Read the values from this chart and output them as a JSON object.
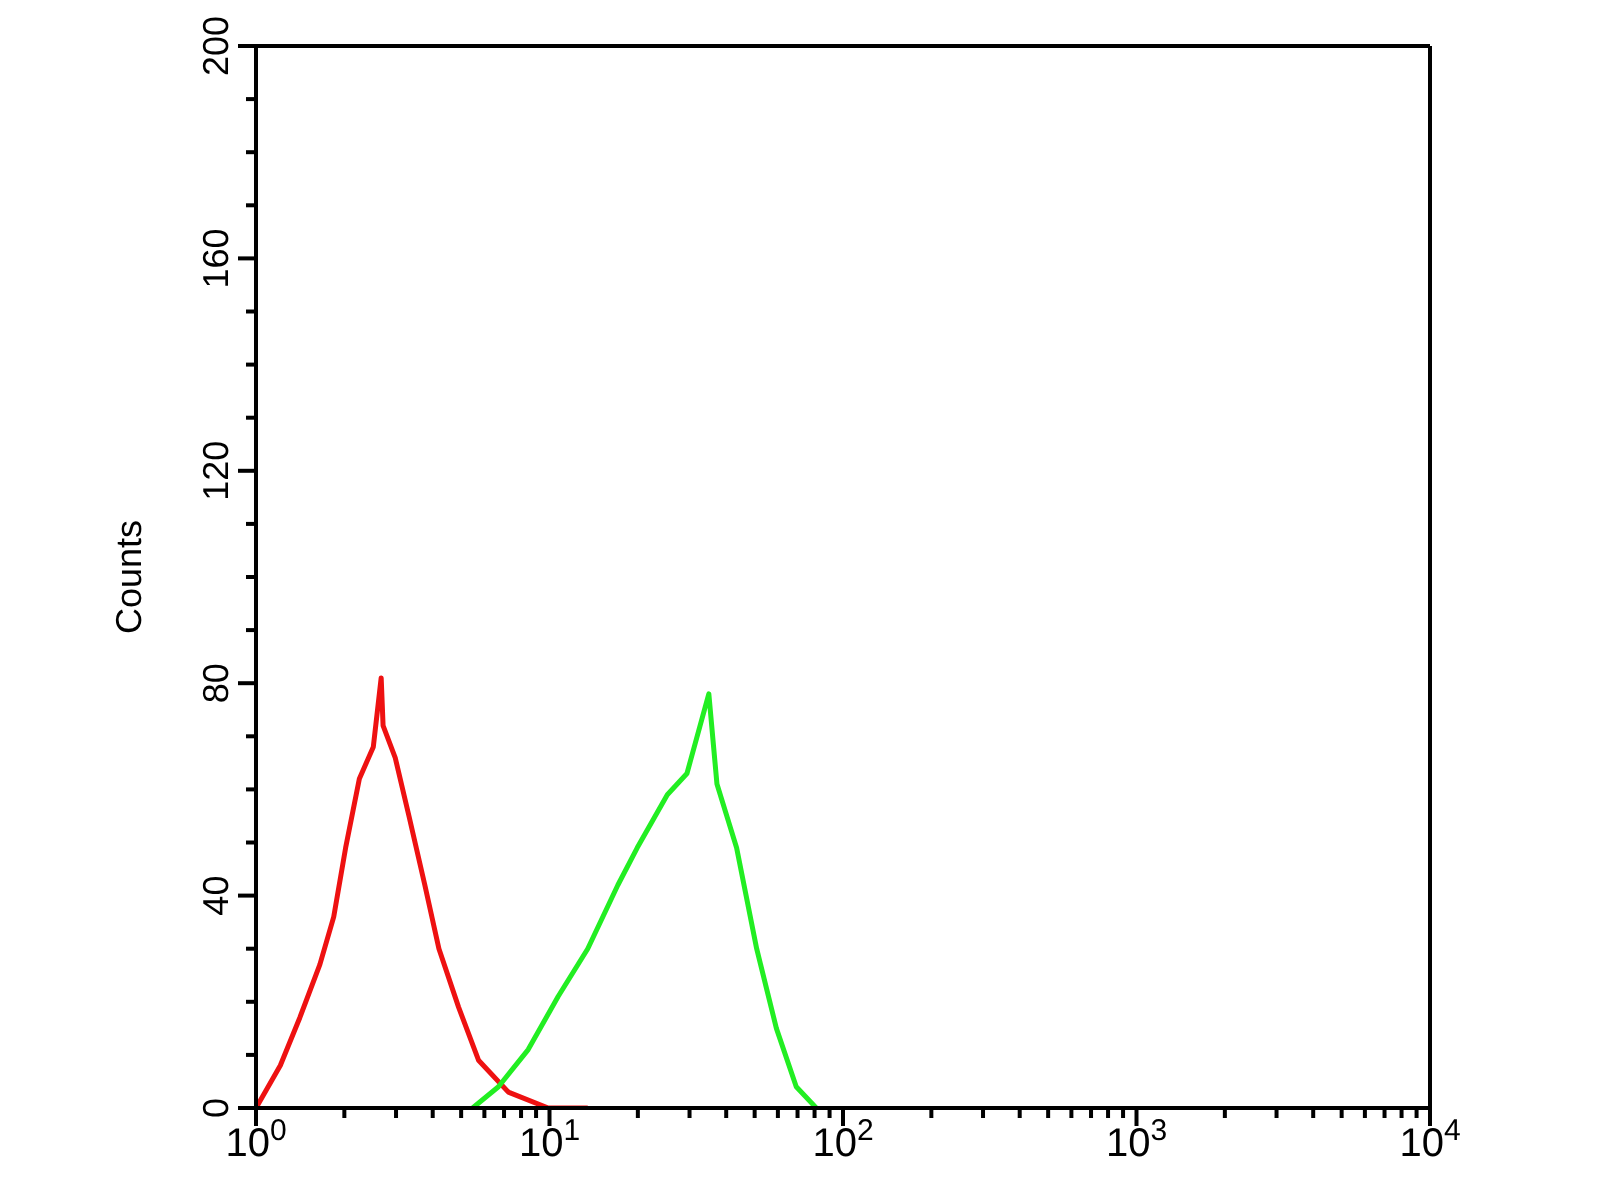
{
  "chart_data": {
    "type": "line",
    "ylabel": "Counts",
    "log": "x",
    "marker": "none",
    "xlim": [
      1,
      10000
    ],
    "ylim": [
      0,
      200
    ],
    "xticks": [
      {
        "value": 1,
        "label": "10$^{0}$"
      },
      {
        "value": 2,
        "label": null
      },
      {
        "value": 3,
        "label": null
      },
      {
        "value": 4,
        "label": null
      },
      {
        "value": 5,
        "label": null
      },
      {
        "value": 6,
        "label": null
      },
      {
        "value": 7,
        "label": null
      },
      {
        "value": 8,
        "label": null
      },
      {
        "value": 9,
        "label": null
      },
      {
        "value": 10,
        "label": "10$^{1}$"
      },
      {
        "value": 20,
        "label": null
      },
      {
        "value": 30,
        "label": null
      },
      {
        "value": 40,
        "label": null
      },
      {
        "value": 50,
        "label": null
      },
      {
        "value": 60,
        "label": null
      },
      {
        "value": 70,
        "label": null
      },
      {
        "value": 80,
        "label": null
      },
      {
        "value": 90,
        "label": null
      },
      {
        "value": 100,
        "label": "10$^{2}$"
      },
      {
        "value": 200,
        "label": null
      },
      {
        "value": 300,
        "label": null
      },
      {
        "value": 400,
        "label": null
      },
      {
        "value": 500,
        "label": null
      },
      {
        "value": 600,
        "label": null
      },
      {
        "value": 700,
        "label": null
      },
      {
        "value": 800,
        "label": null
      },
      {
        "value": 900,
        "label": null
      },
      {
        "value": 1000,
        "label": "10$^{3}$"
      },
      {
        "value": 2000,
        "label": null
      },
      {
        "value": 3000,
        "label": null
      },
      {
        "value": 4000,
        "label": null
      },
      {
        "value": 5000,
        "label": null
      },
      {
        "value": 6000,
        "label": null
      },
      {
        "value": 7000,
        "label": null
      },
      {
        "value": 8000,
        "label": null
      },
      {
        "value": 9000,
        "label": null
      },
      {
        "value": 10000,
        "label": "10$^{4}$"
      }
    ],
    "yticks": [
      0,
      {
        "value": 10,
        "label": null
      },
      {
        "value": 20,
        "label": null
      },
      {
        "value": 30,
        "label": null
      },
      40,
      {
        "value": 50,
        "label": null
      },
      {
        "value": 60,
        "label": null
      },
      {
        "value": 70,
        "label": null
      },
      80,
      {
        "value": 90,
        "label": null
      },
      {
        "value": 100,
        "label": null
      },
      {
        "value": 110,
        "label": null
      },
      120,
      {
        "value": 130,
        "label": null
      },
      {
        "value": 140,
        "label": null
      },
      {
        "value": 150,
        "label": null
      },
      160,
      {
        "value": 170,
        "label": null
      },
      {
        "value": 180,
        "label": null
      },
      {
        "value": 190,
        "label": null
      },
      200
    ],
    "series": [
      {
        "color": "#ee1111",
        "x": [
          1,
          1.21,
          1.41,
          1.65,
          1.84,
          2.02,
          2.25,
          2.51,
          2.67,
          2.71,
          2.98,
          3.32,
          3.76,
          4.2,
          4.9,
          5.73,
          7.24,
          9.9,
          13.5
        ],
        "values": [
          0,
          8,
          17,
          27,
          36,
          49,
          62,
          68,
          81,
          72,
          66,
          55,
          42,
          30,
          19,
          9,
          3,
          0,
          0
        ]
      },
      {
        "color": "#22ee22",
        "x": [
          5.47,
          6.7,
          8.46,
          10.7,
          13.5,
          17.1,
          19.9,
          25.2,
          29.4,
          34.9,
          37.2,
          43.4,
          50.8,
          59.3,
          69.3,
          81.1
        ],
        "values": [
          0,
          4,
          11,
          21,
          30,
          42,
          49,
          59,
          63,
          78,
          61,
          49,
          30,
          15,
          4,
          0
        ]
      }
    ]
  }
}
